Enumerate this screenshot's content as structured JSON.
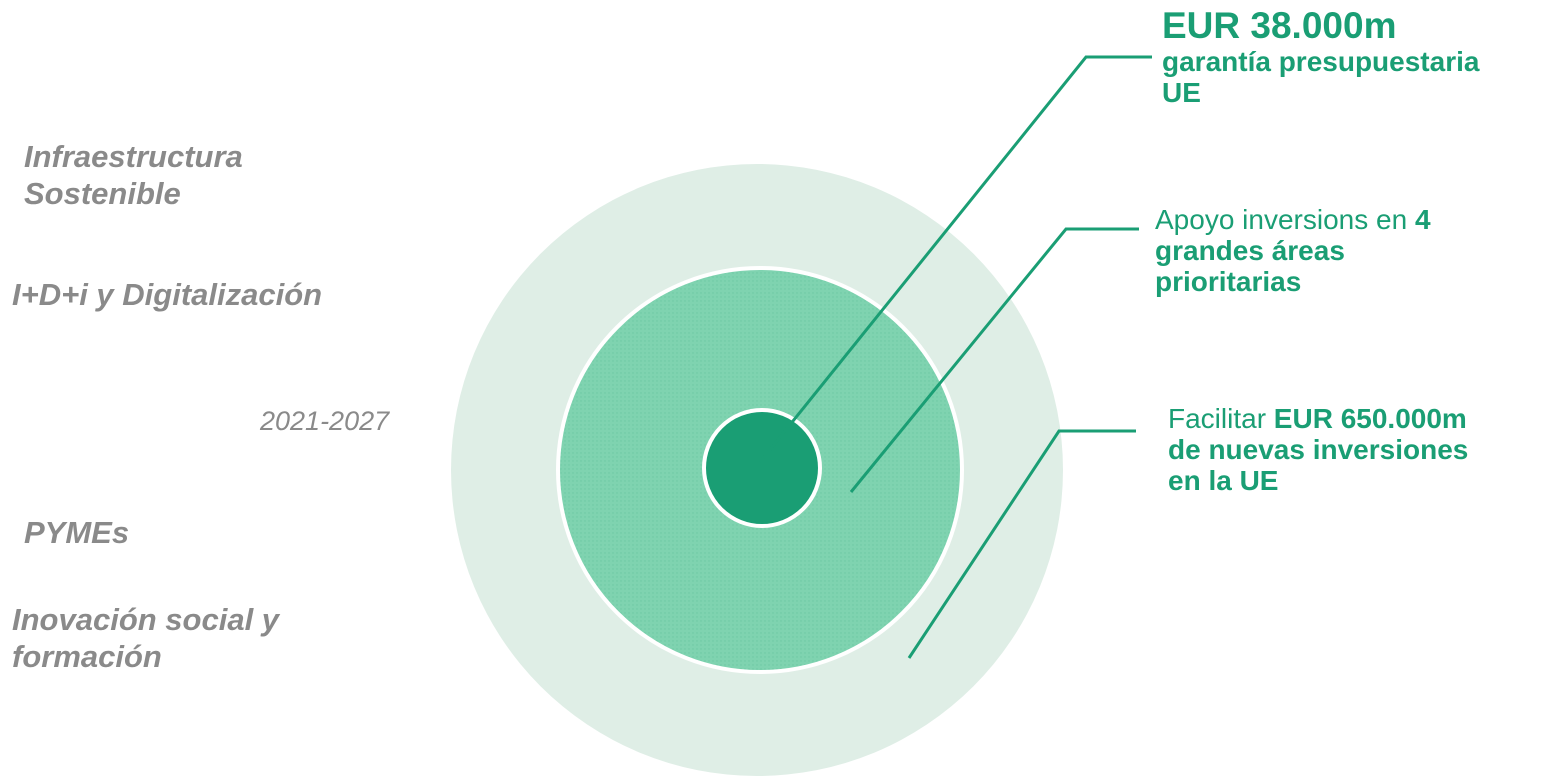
{
  "diagram": {
    "period": "2021-2027",
    "priority_areas": [
      {
        "line1": "Infraestructura",
        "line2": "Sostenible"
      },
      {
        "line1": "I+D+i y Digitalización",
        "line2": ""
      },
      {
        "line1": "PYMEs",
        "line2": ""
      },
      {
        "line1": "Inovación social y",
        "line2": "formación"
      }
    ],
    "callouts": {
      "guarantee": {
        "amount": "EUR 38.000m",
        "line2": "garantía presupuestaria",
        "line3": "UE"
      },
      "areas": {
        "prefix": "Apoyo inversions en ",
        "bold_number": "4",
        "line2": "grandes áreas",
        "line3": "prioritarias"
      },
      "investment": {
        "prefix": "Facilitar ",
        "bold_amount": "EUR 650.000m",
        "line2": "de nuevas inversiones",
        "line3": "en la UE"
      }
    },
    "colors": {
      "outer_ring": "#dfeee6",
      "middle_ring": "#7fd3b0",
      "inner_core": "#1a9e74",
      "leader_line": "#1a9e74",
      "label_gray": "#8a8a8a"
    }
  }
}
